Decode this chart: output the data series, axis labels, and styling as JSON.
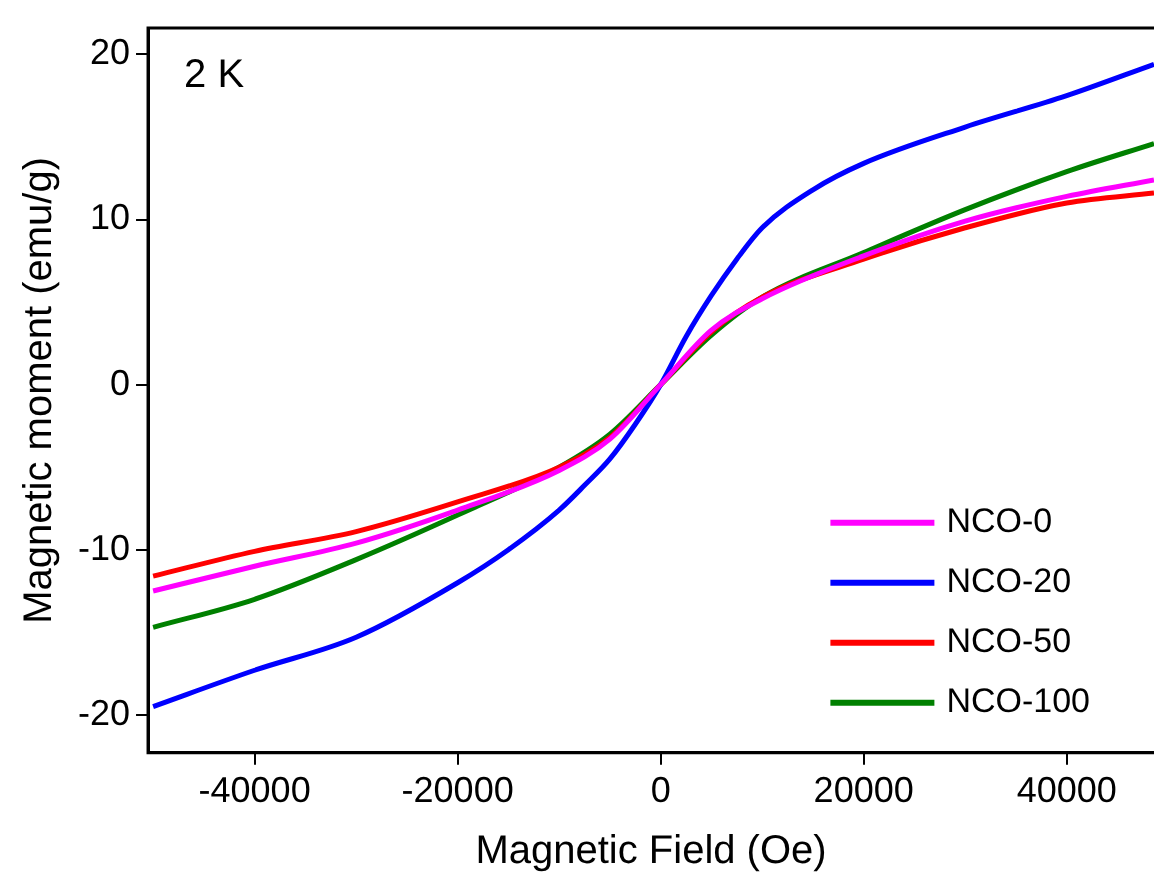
{
  "chart_data": {
    "type": "line",
    "xlabel": "Magnetic Field (Oe)",
    "ylabel": "Magnetic moment (emu/g)",
    "annotations": [
      "2 K"
    ],
    "x": [
      -50000,
      -40000,
      -30000,
      -20000,
      -10000,
      -5000,
      0,
      5000,
      10000,
      20000,
      30000,
      40000,
      48600
    ],
    "xlim": [
      -50500,
      48600
    ],
    "ylim": [
      -22.3,
      21.6
    ],
    "xticks": [
      -40000,
      -20000,
      0,
      20000,
      40000
    ],
    "yticks": [
      -20,
      -10,
      0,
      10,
      20
    ],
    "legend": "bottom right",
    "grid": false,
    "marker": "none",
    "line_style": "solid",
    "series": [
      {
        "name": "NCO-0",
        "color": "#ff00ff",
        "values": [
          -12.5,
          -11.0,
          -9.6,
          -7.6,
          -5.2,
          -3.3,
          0,
          3.3,
          5.2,
          7.8,
          9.9,
          11.4,
          12.4
        ]
      },
      {
        "name": "NCO-20",
        "color": "#0000ff",
        "x": [
          -50000,
          -40000,
          -30000,
          -20000,
          -15000,
          -10000,
          -7500,
          -5000,
          -2500,
          0,
          2500,
          5000,
          7500,
          10000,
          15000,
          20000,
          30000,
          40000,
          48600
        ],
        "values": [
          -19.5,
          -17.3,
          -15.3,
          -12.0,
          -10.0,
          -7.6,
          -6.1,
          -4.5,
          -2.4,
          0,
          2.9,
          5.4,
          7.6,
          9.5,
          11.8,
          13.4,
          15.6,
          17.5,
          19.4
        ]
      },
      {
        "name": "NCO-50",
        "color": "#ff0000",
        "values": [
          -11.6,
          -10.1,
          -8.9,
          -7.1,
          -5.0,
          -3.2,
          0,
          3.2,
          5.3,
          7.6,
          9.5,
          11.0,
          11.6
        ]
      },
      {
        "name": "NCO-100",
        "color": "#008000",
        "values": [
          -14.7,
          -13.0,
          -10.6,
          -7.9,
          -5.0,
          -3.0,
          0,
          3.0,
          5.3,
          8.0,
          10.6,
          12.9,
          14.6
        ]
      }
    ]
  }
}
